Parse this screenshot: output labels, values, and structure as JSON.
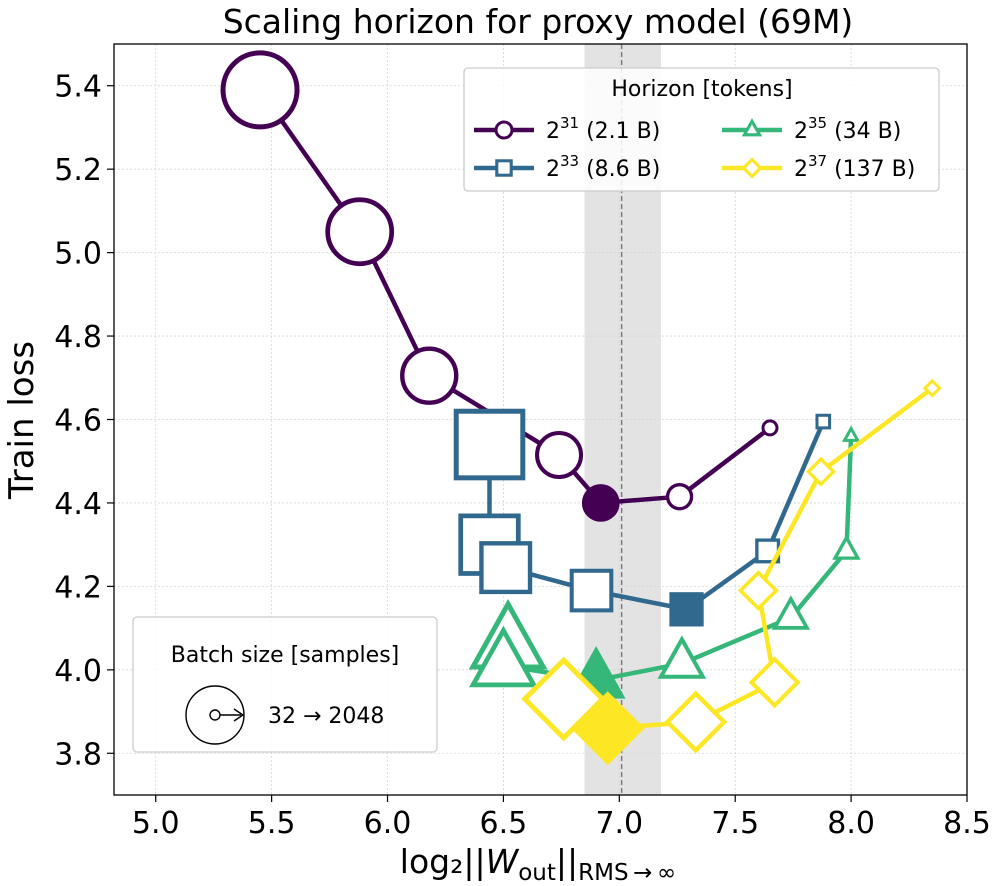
{
  "chart_data": {
    "type": "line",
    "title": "Scaling horizon for proxy model (69M)",
    "xlabel": "log₂||W_out||_RMS→∞",
    "xlabel_parts": {
      "prefix": "log₂||",
      "var": "W",
      "sub": "out",
      "mid": "||",
      "sub2": "RMS → ∞"
    },
    "ylabel": "Train loss",
    "xlim": [
      4.82,
      8.5
    ],
    "ylim": [
      3.7,
      5.5
    ],
    "xticks": [
      5.0,
      5.5,
      6.0,
      6.5,
      7.0,
      7.5,
      8.0,
      8.5
    ],
    "xtick_labels": [
      "5.0",
      "5.5",
      "6.0",
      "6.5",
      "7.0",
      "7.5",
      "8.0",
      "8.5"
    ],
    "yticks": [
      3.8,
      4.0,
      4.2,
      4.4,
      4.6,
      4.8,
      5.0,
      5.2,
      5.4
    ],
    "ytick_labels": [
      "3.8",
      "4.0",
      "4.2",
      "4.4",
      "4.6",
      "4.8",
      "5.0",
      "5.2",
      "5.4"
    ],
    "grid": true,
    "vline_x": 7.01,
    "band": [
      6.85,
      7.18
    ],
    "legend": {
      "title": "Horizon [tokens]",
      "placement": "top-right",
      "entries": [
        {
          "base": "2",
          "exp": "31",
          "rest": " (2.1 B)"
        },
        {
          "base": "2",
          "exp": "33",
          "rest": " (8.6 B)"
        },
        {
          "base": "2",
          "exp": "35",
          "rest": " (34 B)"
        },
        {
          "base": "2",
          "exp": "37",
          "rest": " (137 B)"
        }
      ]
    },
    "size_legend": {
      "title": "Batch size [samples]",
      "label": "32 → 2048",
      "placement": "bottom-left"
    },
    "batch_sizes": [
      2048,
      1024,
      512,
      256,
      128,
      64,
      32
    ],
    "series": [
      {
        "name": "2^31 (2.1 B)",
        "marker": "circle",
        "color": "#440154",
        "x": [
          5.45,
          5.88,
          6.18,
          6.74,
          6.92,
          7.26,
          7.65
        ],
        "y": [
          5.39,
          5.05,
          4.705,
          4.515,
          4.4,
          4.415,
          4.58
        ],
        "best_index": 4
      },
      {
        "name": "2^33 (8.6 B)",
        "marker": "square",
        "color": "#31688e",
        "x": [
          6.44,
          6.44,
          6.51,
          6.88,
          7.29,
          7.64,
          7.88
        ],
        "y": [
          4.54,
          4.3,
          4.245,
          4.19,
          4.145,
          4.285,
          4.595
        ],
        "best_index": 4
      },
      {
        "name": "2^35 (34 B)",
        "marker": "triangle",
        "color": "#35b779",
        "x": [
          6.52,
          6.5,
          6.9,
          7.27,
          7.74,
          7.98,
          8.0
        ],
        "y": [
          4.06,
          4.01,
          3.975,
          4.015,
          4.125,
          4.285,
          4.56
        ],
        "best_index": 2
      },
      {
        "name": "2^37 (137 B)",
        "marker": "diamond",
        "color": "#fde725",
        "x": [
          6.76,
          6.95,
          7.33,
          7.67,
          7.6,
          7.87,
          8.35
        ],
        "y": [
          3.93,
          3.86,
          3.875,
          3.97,
          4.19,
          4.475,
          4.675
        ],
        "best_index": 1
      }
    ]
  }
}
